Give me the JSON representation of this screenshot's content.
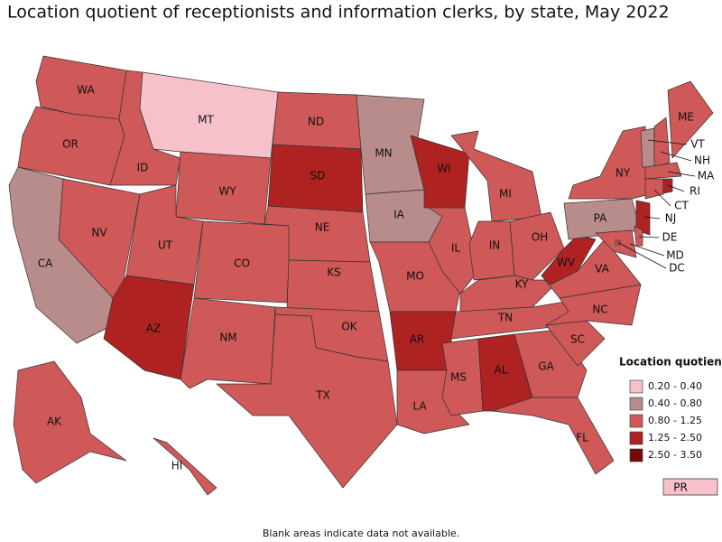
{
  "title": "Location quotient of receptionists and information clerks, by state, May 2022",
  "footnote": "Blank areas indicate data not available.",
  "legend": {
    "title": "Location quotient",
    "classes": [
      {
        "label": "0.20 - 0.40",
        "color": "#f7c1cb"
      },
      {
        "label": "0.40 - 0.80",
        "color": "#b98c8c"
      },
      {
        "label": "0.80 - 1.25",
        "color": "#cf5858"
      },
      {
        "label": "1.25 - 2.50",
        "color": "#ae2222"
      },
      {
        "label": "2.50 - 3.50",
        "color": "#7a0808"
      }
    ]
  },
  "states": [
    {
      "label": "WA",
      "color": "#cf5858"
    },
    {
      "label": "OR",
      "color": "#cf5858"
    },
    {
      "label": "CA",
      "color": "#b98c8c"
    },
    {
      "label": "NV",
      "color": "#cf5858"
    },
    {
      "label": "ID",
      "color": "#cf5858"
    },
    {
      "label": "MT",
      "color": "#f7c1cb"
    },
    {
      "label": "WY",
      "color": "#cf5858"
    },
    {
      "label": "UT",
      "color": "#cf5858"
    },
    {
      "label": "AZ",
      "color": "#ae2222"
    },
    {
      "label": "CO",
      "color": "#cf5858"
    },
    {
      "label": "NM",
      "color": "#cf5858"
    },
    {
      "label": "ND",
      "color": "#cf5858"
    },
    {
      "label": "SD",
      "color": "#ae2222"
    },
    {
      "label": "NE",
      "color": "#cf5858"
    },
    {
      "label": "KS",
      "color": "#cf5858"
    },
    {
      "label": "OK",
      "color": "#cf5858"
    },
    {
      "label": "TX",
      "color": "#cf5858"
    },
    {
      "label": "MN",
      "color": "#b98c8c"
    },
    {
      "label": "IA",
      "color": "#b98c8c"
    },
    {
      "label": "MO",
      "color": "#cf5858"
    },
    {
      "label": "AR",
      "color": "#ae2222"
    },
    {
      "label": "LA",
      "color": "#cf5858"
    },
    {
      "label": "WI",
      "color": "#ae2222"
    },
    {
      "label": "IL",
      "color": "#cf5858"
    },
    {
      "label": "MI",
      "color": "#cf5858"
    },
    {
      "label": "IN",
      "color": "#cf5858"
    },
    {
      "label": "OH",
      "color": "#cf5858"
    },
    {
      "label": "KY",
      "color": "#cf5858"
    },
    {
      "label": "TN",
      "color": "#cf5858"
    },
    {
      "label": "MS",
      "color": "#cf5858"
    },
    {
      "label": "AL",
      "color": "#ae2222"
    },
    {
      "label": "GA",
      "color": "#cf5858"
    },
    {
      "label": "FL",
      "color": "#cf5858"
    },
    {
      "label": "SC",
      "color": "#cf5858"
    },
    {
      "label": "NC",
      "color": "#cf5858"
    },
    {
      "label": "VA",
      "color": "#cf5858"
    },
    {
      "label": "WV",
      "color": "#ae2222"
    },
    {
      "label": "PA",
      "color": "#b98c8c"
    },
    {
      "label": "NY",
      "color": "#cf5858"
    },
    {
      "label": "NJ",
      "color": "#ae2222"
    },
    {
      "label": "VT",
      "color": "#b98c8c"
    },
    {
      "label": "NH",
      "color": "#cf5858"
    },
    {
      "label": "ME",
      "color": "#cf5858"
    },
    {
      "label": "MA",
      "color": "#cf5858"
    },
    {
      "label": "CT",
      "color": "#cf5858"
    },
    {
      "label": "RI",
      "color": "#ae2222"
    },
    {
      "label": "MD",
      "color": "#cf5858"
    },
    {
      "label": "DE",
      "color": "#cf5858"
    },
    {
      "label": "DC",
      "color": "#cf5858"
    },
    {
      "label": "AK",
      "color": "#cf5858"
    },
    {
      "label": "HI",
      "color": "#cf5858"
    },
    {
      "label": "PR",
      "color": "#f7c1cb"
    }
  ]
}
